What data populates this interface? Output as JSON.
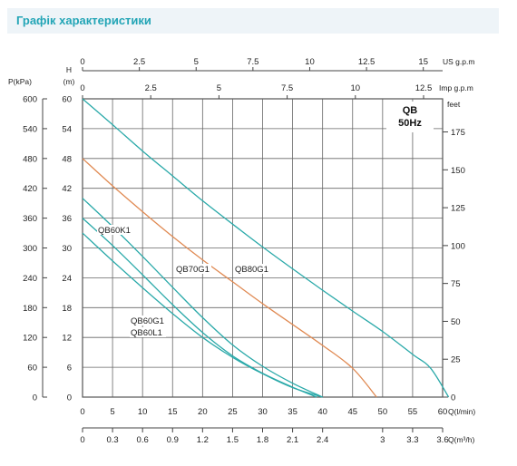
{
  "header": {
    "title": "Графік характеристики"
  },
  "chart_data": {
    "type": "line",
    "model": "QB",
    "frequency": "50Hz",
    "grid": true,
    "series_color": "#2aa9a9",
    "highlight_color": "#e08a53",
    "axes": {
      "x_flow_lmin": {
        "label": "Q(l/min)",
        "range": [
          0,
          60
        ],
        "ticks": [
          0,
          5,
          10,
          15,
          20,
          25,
          30,
          35,
          40,
          45,
          50,
          55,
          60
        ]
      },
      "x_flow_m3h": {
        "label": "Q(m³/h)",
        "ticks": [
          "0",
          "0.3",
          "0.6",
          "0.9",
          "1.2",
          "1.5",
          "1.8",
          "2.1",
          "2.4",
          "3",
          "3.3",
          "3.6"
        ]
      },
      "x_us_gpm": {
        "label": "US g.p.m",
        "ticks": [
          "0",
          "2.5",
          "5",
          "7.5",
          "10",
          "12.5",
          "15"
        ]
      },
      "x_imp_gpm": {
        "label": "Imp g.p.m",
        "ticks": [
          "0",
          "2.5",
          "5",
          "7.5",
          "10",
          "12.5"
        ]
      },
      "y_head_m": {
        "label_top": "H",
        "label_unit": "(m)",
        "range": [
          0,
          60
        ],
        "ticks": [
          0,
          6,
          12,
          18,
          24,
          30,
          36,
          42,
          48,
          54,
          60
        ]
      },
      "y_pressure_kpa": {
        "label": "P(kPa)",
        "ticks": [
          0,
          60,
          120,
          180,
          240,
          300,
          360,
          420,
          480,
          540,
          600
        ]
      },
      "y_feet": {
        "label": "feet",
        "ticks": [
          0,
          25,
          50,
          75,
          100,
          125,
          150,
          175
        ]
      }
    },
    "series": [
      {
        "name": "QB80G1",
        "color": "#2aa9a9",
        "x": [
          0,
          5,
          10,
          15,
          20,
          25,
          30,
          35,
          40,
          45,
          50,
          55,
          58,
          61
        ],
        "y": [
          60,
          54.8,
          49.5,
          44.5,
          39.5,
          34.8,
          30.2,
          25.8,
          21.5,
          17.3,
          13.2,
          8.6,
          5.8,
          0
        ]
      },
      {
        "name": "QB70G1",
        "color": "#e08a53",
        "x": [
          0,
          5,
          10,
          15,
          20,
          25,
          30,
          35,
          40,
          45,
          49
        ],
        "y": [
          48,
          42.5,
          37.3,
          32.3,
          27.6,
          23.2,
          18.8,
          14.6,
          10.4,
          5.8,
          0
        ]
      },
      {
        "name": "QB60K1",
        "color": "#2aa9a9",
        "x": [
          0,
          5,
          10,
          15,
          20,
          25,
          30,
          35,
          40
        ],
        "y": [
          40,
          34.3,
          28.3,
          22.1,
          16.0,
          10.5,
          6.2,
          2.8,
          0
        ]
      },
      {
        "name": "QB60G1",
        "color": "#2aa9a9",
        "x": [
          0,
          5,
          10,
          15,
          20,
          25,
          30,
          35,
          40
        ],
        "y": [
          33,
          27.4,
          22.0,
          16.8,
          12.0,
          8.0,
          4.7,
          1.9,
          0
        ]
      },
      {
        "name": "QB60L1",
        "color": "#2aa9a9",
        "x": [
          0,
          5,
          10,
          15,
          20,
          25,
          30,
          35,
          39
        ],
        "y": [
          36,
          30.5,
          24.6,
          18.6,
          13.0,
          8.3,
          4.8,
          2.0,
          0
        ]
      }
    ]
  }
}
